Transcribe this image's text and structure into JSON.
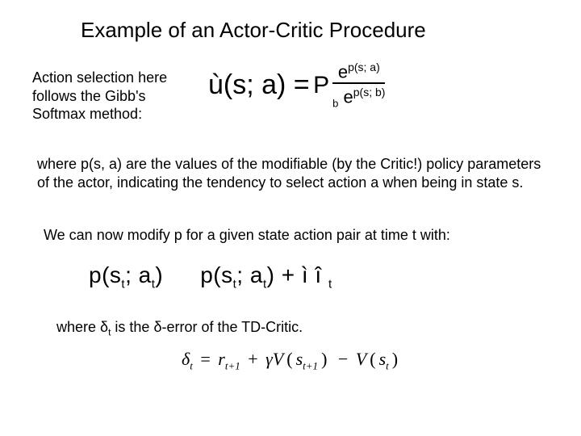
{
  "title": "Example of an Actor-Critic Procedure",
  "intro": "Action selection here follows the Gibb's Softmax method:",
  "formula1": {
    "lhs": "ù(s; a) = ",
    "P": "P",
    "num_e": "e",
    "num_exp": "p(s; a)",
    "den_sum": "b",
    "den_e": "e",
    "den_exp": "p(s; b)"
  },
  "para1": "where p(s, a) are the values of the modifiable (by the Critic!) policy parameters of the actor, indicating the tendency to select action a when being in state s.",
  "para2": "We can now modify p for a given state action pair at time t with:",
  "formula2": {
    "left": "p(s",
    "left_sub": "t",
    "left2": "; a",
    "left2_sub": "t",
    "left3": ")",
    "right": "p(s",
    "right_sub": "t",
    "right2": "; a",
    "right2_sub": "t",
    "right3": ") + ì î ",
    "right3_sub": "t"
  },
  "para3_a": "where ",
  "para3_delta1": "δ",
  "para3_sub": "t",
  "para3_b": " is the ",
  "para3_delta2": "δ",
  "para3_c": "-error of the TD-Critic.",
  "formula3": {
    "d": "δ",
    "d_sub": "t",
    "eq": " = ",
    "r": "r",
    "r_sub": "t+1",
    "plus": " + ",
    "g": "γ",
    "V1": "V",
    "lp1": "(",
    "s1": "s",
    "s1_sub": "t+1",
    "rp1": ")",
    "minus": " − ",
    "V2": "V",
    "lp2": "(",
    "s2": "s",
    "s2_sub": "t",
    "rp2": ")"
  }
}
